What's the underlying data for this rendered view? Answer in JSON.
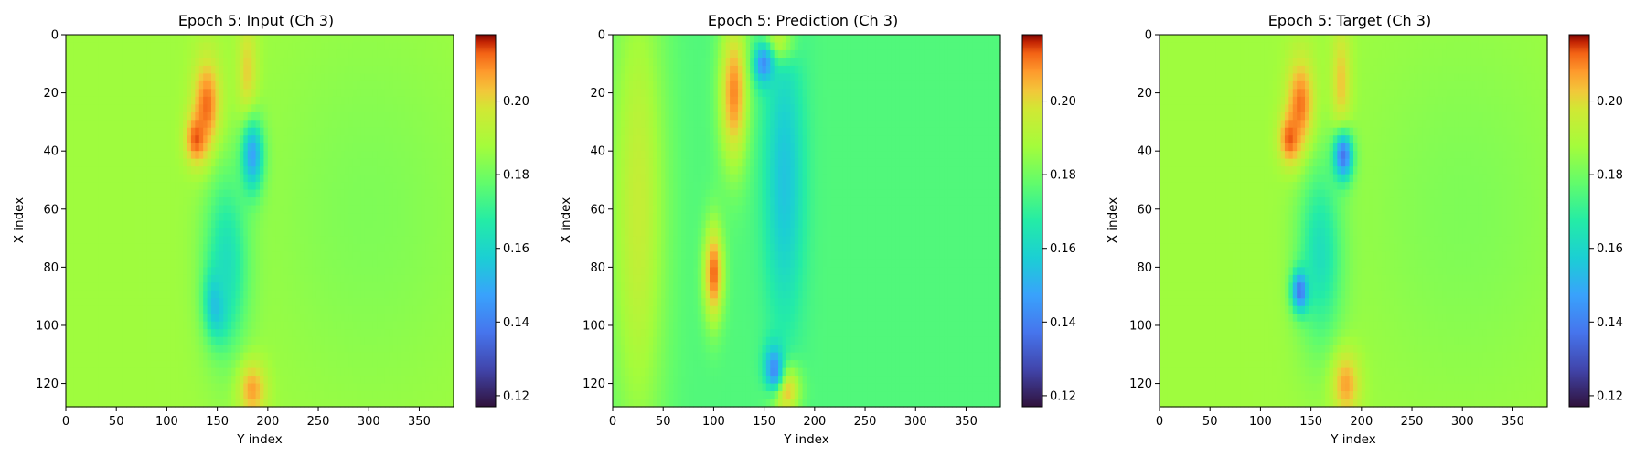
{
  "chart_data": [
    {
      "type": "heatmap",
      "title": "Epoch 5: Input (Ch 3)",
      "xlabel": "Y index",
      "ylabel": "X index",
      "xlim": [
        0,
        384
      ],
      "ylim": [
        128,
        0
      ],
      "xticks": [
        0,
        50,
        100,
        150,
        200,
        250,
        300,
        350
      ],
      "yticks": [
        0,
        20,
        40,
        60,
        80,
        100,
        120
      ],
      "colorbar": {
        "range": [
          0.117,
          0.218
        ],
        "ticks": [
          "0.12",
          "0.14",
          "0.16",
          "0.18",
          "0.20"
        ],
        "colormap": "turbo"
      },
      "background_value": 0.187,
      "features": [
        {
          "x": 140,
          "y": 25,
          "sx": 10,
          "sy": 12,
          "v": 0.215
        },
        {
          "x": 130,
          "y": 36,
          "sx": 8,
          "sy": 6,
          "v": 0.217
        },
        {
          "x": 180,
          "y": 15,
          "sx": 7,
          "sy": 14,
          "v": 0.205
        },
        {
          "x": 185,
          "y": 42,
          "sx": 8,
          "sy": 9,
          "v": 0.135
        },
        {
          "x": 150,
          "y": 92,
          "sx": 8,
          "sy": 8,
          "v": 0.138
        },
        {
          "x": 160,
          "y": 78,
          "sx": 16,
          "sy": 22,
          "v": 0.16
        },
        {
          "x": 185,
          "y": 122,
          "sx": 10,
          "sy": 7,
          "v": 0.21
        },
        {
          "x": 300,
          "y": 60,
          "sx": 70,
          "sy": 45,
          "v": 0.182
        }
      ]
    },
    {
      "type": "heatmap",
      "title": "Epoch 5: Prediction (Ch 3)",
      "xlabel": "Y index",
      "ylabel": "X index",
      "xlim": [
        0,
        384
      ],
      "ylim": [
        128,
        0
      ],
      "xticks": [
        0,
        50,
        100,
        150,
        200,
        250,
        300,
        350
      ],
      "yticks": [
        0,
        20,
        40,
        60,
        80,
        100,
        120
      ],
      "colorbar": {
        "range": [
          0.117,
          0.218
        ],
        "ticks": [
          "0.12",
          "0.14",
          "0.16",
          "0.18",
          "0.20"
        ],
        "colormap": "turbo"
      },
      "background_value": 0.175,
      "features": [
        {
          "x": 120,
          "y": 20,
          "sx": 10,
          "sy": 18,
          "v": 0.21
        },
        {
          "x": 100,
          "y": 82,
          "sx": 7,
          "sy": 12,
          "v": 0.213
        },
        {
          "x": 165,
          "y": 3,
          "sx": 10,
          "sy": 5,
          "v": 0.215
        },
        {
          "x": 170,
          "y": 122,
          "sx": 10,
          "sy": 6,
          "v": 0.215
        },
        {
          "x": 150,
          "y": 10,
          "sx": 7,
          "sy": 5,
          "v": 0.14
        },
        {
          "x": 160,
          "y": 115,
          "sx": 7,
          "sy": 6,
          "v": 0.14
        },
        {
          "x": 170,
          "y": 50,
          "sx": 14,
          "sy": 35,
          "v": 0.155
        },
        {
          "x": 25,
          "y": 60,
          "sx": 20,
          "sy": 60,
          "v": 0.195
        }
      ]
    },
    {
      "type": "heatmap",
      "title": "Epoch 5: Target (Ch 3)",
      "xlabel": "Y index",
      "ylabel": "X index",
      "xlim": [
        0,
        384
      ],
      "ylim": [
        128,
        0
      ],
      "xticks": [
        0,
        50,
        100,
        150,
        200,
        250,
        300,
        350
      ],
      "yticks": [
        0,
        20,
        40,
        60,
        80,
        100,
        120
      ],
      "colorbar": {
        "range": [
          0.117,
          0.218
        ],
        "ticks": [
          "0.12",
          "0.14",
          "0.16",
          "0.18",
          "0.20"
        ],
        "colormap": "turbo"
      },
      "background_value": 0.187,
      "features": [
        {
          "x": 140,
          "y": 25,
          "sx": 10,
          "sy": 12,
          "v": 0.215
        },
        {
          "x": 130,
          "y": 36,
          "sx": 8,
          "sy": 6,
          "v": 0.217
        },
        {
          "x": 180,
          "y": 18,
          "sx": 7,
          "sy": 14,
          "v": 0.207
        },
        {
          "x": 182,
          "y": 42,
          "sx": 7,
          "sy": 6,
          "v": 0.12
        },
        {
          "x": 140,
          "y": 88,
          "sx": 6,
          "sy": 5,
          "v": 0.12
        },
        {
          "x": 160,
          "y": 75,
          "sx": 16,
          "sy": 22,
          "v": 0.16
        },
        {
          "x": 185,
          "y": 120,
          "sx": 10,
          "sy": 8,
          "v": 0.21
        },
        {
          "x": 300,
          "y": 60,
          "sx": 70,
          "sy": 45,
          "v": 0.182
        }
      ]
    }
  ]
}
